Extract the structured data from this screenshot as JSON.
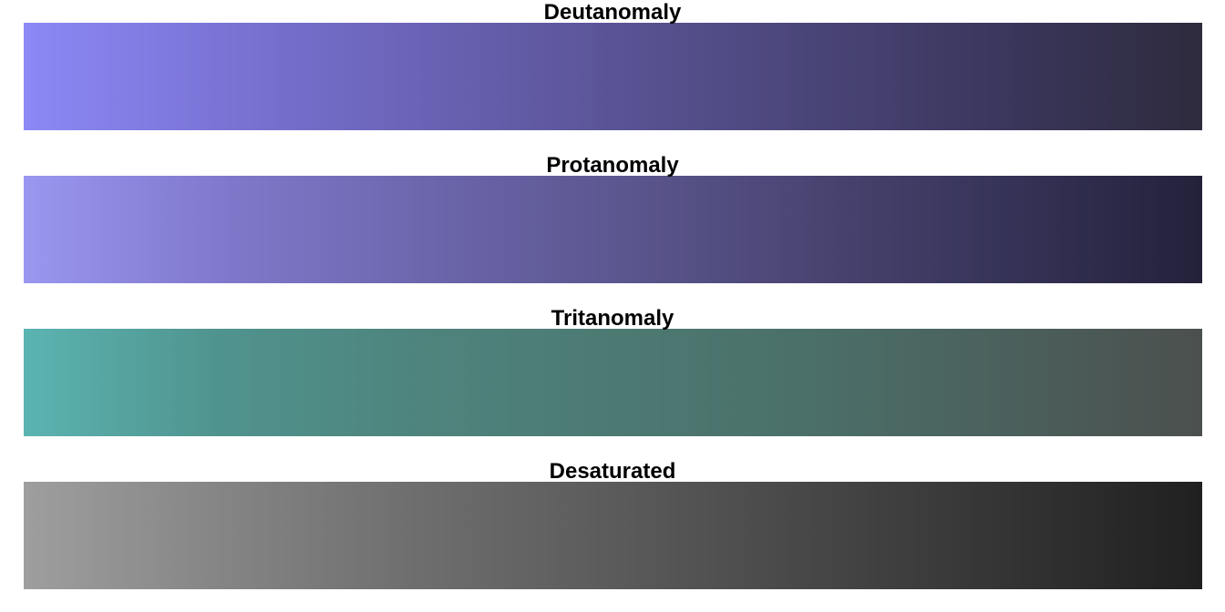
{
  "chart_data": {
    "type": "heatmap",
    "grid": false,
    "legend": "none",
    "panels": [
      {
        "title": "Deutanomaly",
        "colors": [
          "#8c88f5",
          "#7a74d6",
          "#6a63b6",
          "#5a5496",
          "#4a4578",
          "#3a365c",
          "#2e2b3e"
        ]
      },
      {
        "title": "Protanomaly",
        "colors": [
          "#9a97f0",
          "#8079cc",
          "#6d67ae",
          "#5c5790",
          "#4a4572",
          "#363358",
          "#23213a"
        ]
      },
      {
        "title": "Tritanomaly",
        "colors": [
          "#5bb4b1",
          "#50938e",
          "#4e847d",
          "#4c7a73",
          "#4b6f69",
          "#4b605c",
          "#4b504e"
        ]
      },
      {
        "title": "Desaturated",
        "colors": [
          "#9e9e9e",
          "#858585",
          "#6e6e6e",
          "#5b5b5b",
          "#474747",
          "#343434",
          "#202020"
        ]
      }
    ]
  }
}
